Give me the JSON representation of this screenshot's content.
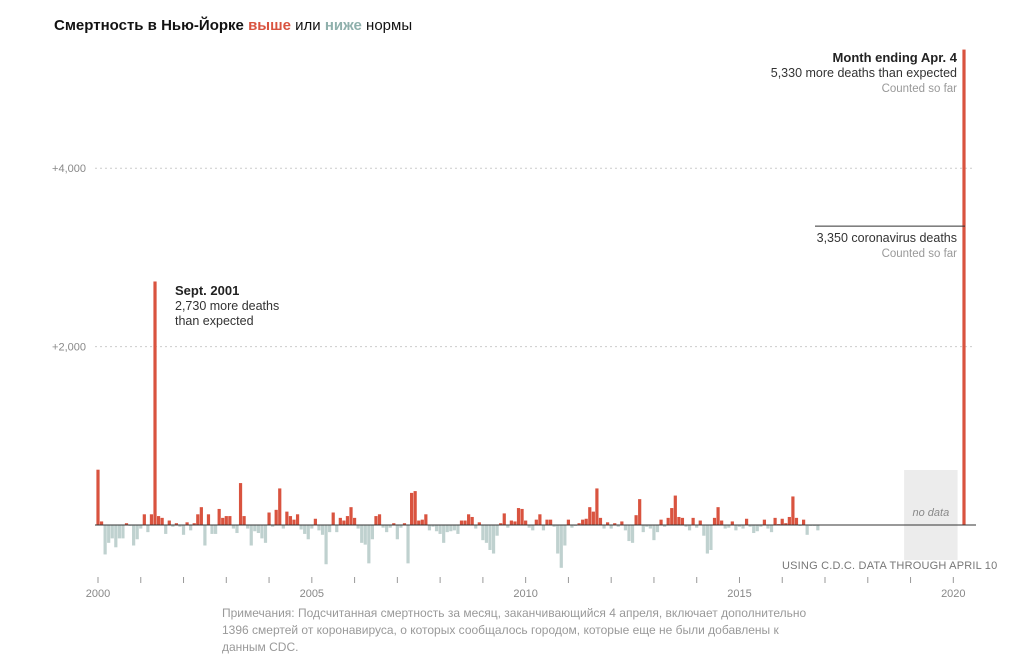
{
  "title": {
    "prefix": "Смертность в Нью-Йорке ",
    "above": "выше",
    "middle": " или ",
    "below": "ниже",
    "suffix": " нормы"
  },
  "colors": {
    "above": "#d9533f",
    "below": "#bfd1cf",
    "baseline": "#333333",
    "grid": "#cccccc",
    "nodata": "#ececec"
  },
  "annotations": {
    "sept2001": {
      "title": "Sept. 2001",
      "line1": "2,730 more deaths",
      "line2": "than expected"
    },
    "apr2020": {
      "title": "Month ending Apr. 4",
      "line1": "5,330 more deaths than expected",
      "line2": "Counted so far"
    },
    "covid": {
      "line1": "3,350 coronavirus deaths",
      "line2": "Counted so far"
    },
    "nodata": "no data"
  },
  "source": "USING C.D.C. DATA THROUGH APRIL 10",
  "note": "Примечания: Подсчитанная смертность за месяц, заканчивающийся 4 апреля, включает дополнительно 1396 смертей от коронавируса, о которых сообщалось городом, которые еще не были добавлены к данным CDC.",
  "chart_data": {
    "type": "bar",
    "title": "Смертность в Нью-Йорке выше или ниже нормы",
    "xlabel": "",
    "ylabel": "",
    "x_range": [
      2000,
      2020.25
    ],
    "ylim": [
      -600,
      5600
    ],
    "y_ticks": [
      {
        "value": 2000,
        "label": "+2,000"
      },
      {
        "value": 4000,
        "label": "+4,000"
      }
    ],
    "x_ticks": [
      {
        "value": 2000,
        "label": "2000"
      },
      {
        "value": 2005,
        "label": "2005"
      },
      {
        "value": 2010,
        "label": "2010"
      },
      {
        "value": 2015,
        "label": "2015"
      },
      {
        "value": 2020,
        "label": "2020"
      }
    ],
    "grid": true,
    "no_data_range": [
      2018.85,
      2020.1
    ],
    "series": [
      {
        "start": 2000.0,
        "step": 0.08333,
        "values": [
          620,
          40,
          -330,
          -200,
          -150,
          -250,
          -150,
          -150,
          20,
          -10,
          -230,
          -160,
          -40,
          120,
          -80,
          120,
          2730,
          100,
          80,
          -100,
          50,
          -20,
          20,
          -20,
          -110,
          30,
          -60,
          20,
          120,
          200,
          -230,
          120,
          -100,
          -100,
          180,
          80,
          100,
          100,
          -40,
          -90,
          470,
          100,
          -40,
          -230,
          -70,
          -90,
          -150,
          -200,
          140,
          -20,
          170,
          410,
          -40,
          150,
          100,
          60,
          120,
          -50,
          -100,
          -160,
          -40,
          70,
          -60,
          -110,
          -440,
          -80,
          140,
          -80,
          80,
          50,
          100,
          200,
          80,
          -40,
          -200,
          -220,
          -430,
          -160,
          100,
          120,
          -30,
          -80,
          -30,
          20,
          -160,
          -30,
          20,
          -430,
          360,
          380,
          50,
          60,
          120,
          -60,
          -20,
          -70,
          -100,
          -200,
          -80,
          -70,
          -60,
          -100,
          50,
          50,
          120,
          90,
          -40,
          30,
          -170,
          -200,
          -280,
          -320,
          -120,
          20,
          130,
          -30,
          50,
          40,
          190,
          180,
          50,
          -30,
          -60,
          60,
          120,
          -60,
          60,
          60,
          -20,
          -320,
          -480,
          -230,
          60,
          -30,
          -10,
          20,
          60,
          70,
          200,
          150,
          410,
          80,
          -40,
          30,
          -40,
          20,
          -20,
          40,
          -60,
          -180,
          -200,
          110,
          290,
          -80,
          -20,
          -40,
          -170,
          -80,
          60,
          -20,
          80,
          190,
          330,
          90,
          80,
          -20,
          -60,
          80,
          -30,
          50,
          -120,
          -320,
          -280,
          80,
          200,
          50,
          -40,
          -30,
          40,
          -60,
          -20,
          -40,
          70,
          -20,
          -90,
          -70,
          -20,
          60,
          -40,
          -80,
          80,
          10,
          70,
          20,
          90,
          320,
          80,
          -10,
          60,
          -110,
          -10,
          -10,
          -60
        ]
      },
      {
        "name": "Month ending Apr. 4",
        "x": [
          2020.25
        ],
        "values": [
          5330
        ]
      }
    ]
  }
}
